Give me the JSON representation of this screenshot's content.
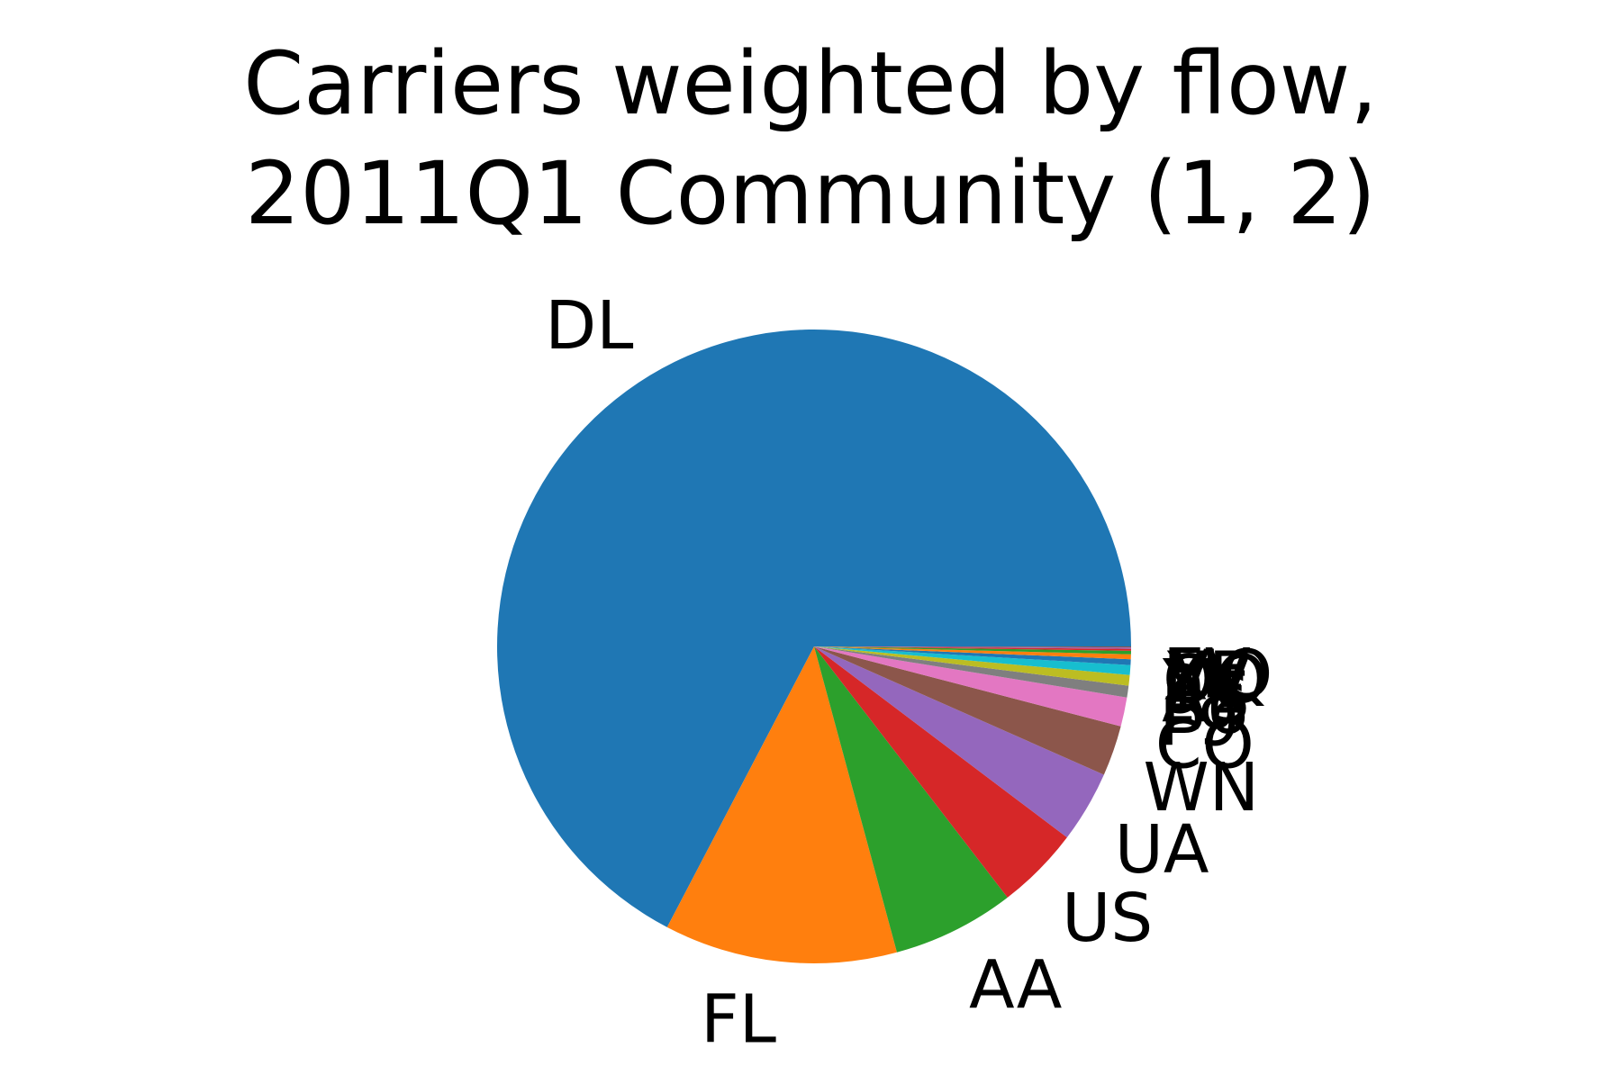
{
  "chart_data": {
    "type": "pie",
    "title_lines": [
      "Carriers weighted by flow,",
      "2011Q1 Community (1, 2)"
    ],
    "start_angle_deg": 0,
    "direction": "counterclockwise",
    "slices": [
      {
        "label": "DL",
        "value": 68.0,
        "color": "#1f77b4"
      },
      {
        "label": "FL",
        "value": 12.0,
        "color": "#ff7f0e"
      },
      {
        "label": "AA",
        "value": 6.3,
        "color": "#2ca02c"
      },
      {
        "label": "US",
        "value": 4.3,
        "color": "#d62728"
      },
      {
        "label": "UA",
        "value": 3.7,
        "color": "#9467bd"
      },
      {
        "label": "WN",
        "value": 2.6,
        "color": "#8c564b"
      },
      {
        "label": "CO",
        "value": 1.5,
        "color": "#e377c2"
      },
      {
        "label": "F9",
        "value": 0.6,
        "color": "#7f7f7f"
      },
      {
        "label": "B6",
        "value": 0.55,
        "color": "#bcbd22"
      },
      {
        "label": "AS",
        "value": 0.5,
        "color": "#17becf"
      },
      {
        "label": "9E",
        "value": 0.3,
        "color": "#1f77b4"
      },
      {
        "label": "YV",
        "value": 0.25,
        "color": "#ff7f0e"
      },
      {
        "label": "OO",
        "value": 0.18,
        "color": "#2ca02c"
      },
      {
        "label": "XE",
        "value": 0.1,
        "color": "#d62728"
      },
      {
        "label": "MQ",
        "value": 0.07,
        "color": "#9467bd"
      },
      {
        "label": "EV",
        "value": 0.05,
        "color": "#8c564b"
      }
    ]
  }
}
